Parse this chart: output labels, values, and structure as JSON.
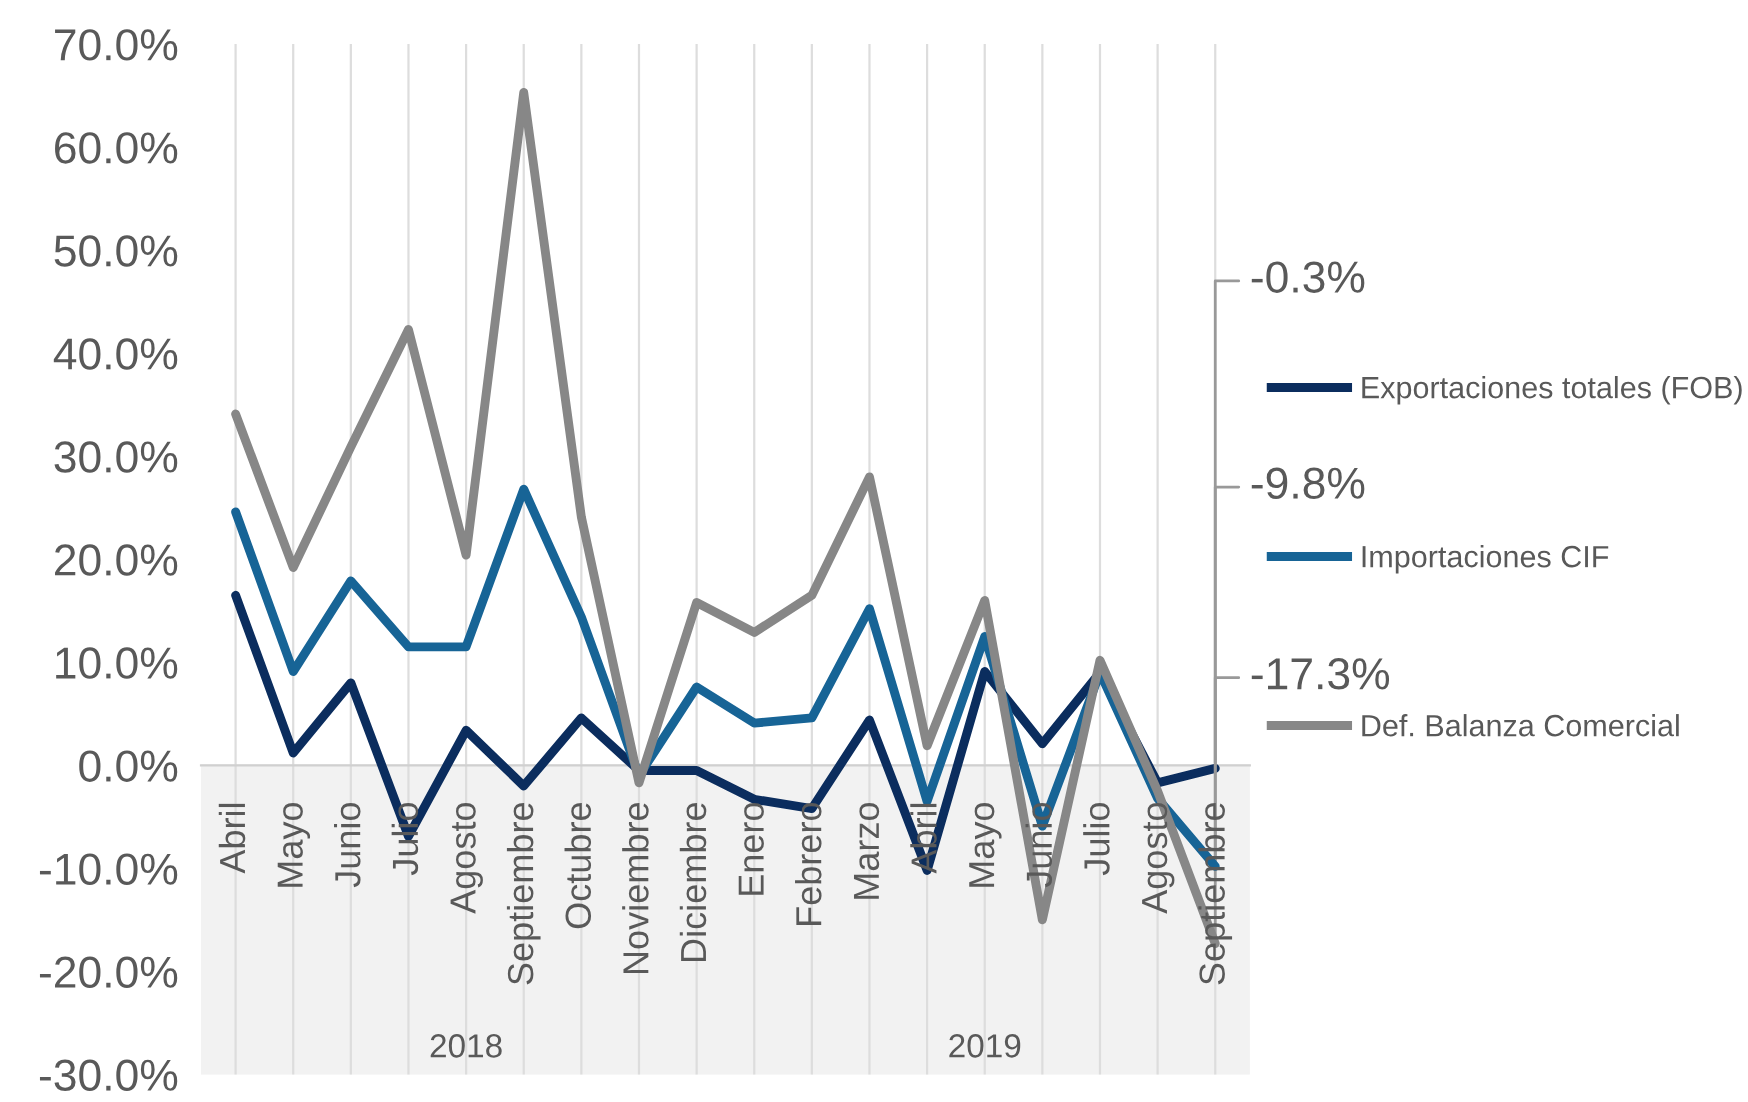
{
  "chart_data": {
    "type": "line",
    "categories": [
      "Abril",
      "Mayo",
      "Junio",
      "Julio",
      "Agosto",
      "Septiembre",
      "Octubre",
      "Noviembre",
      "Diciembre",
      "Enero",
      "Febrero",
      "Marzo",
      "Abril",
      "Mayo",
      "Junio",
      "Julio",
      "Agosto",
      "Septiembre"
    ],
    "series": [
      {
        "name": "Exportaciones totales (FOB)",
        "color": "#0b2d5e",
        "values": [
          16.5,
          1.2,
          8.0,
          -6.9,
          3.4,
          -2.0,
          4.6,
          -0.5,
          -0.5,
          -3.3,
          -4.2,
          4.4,
          -10.2,
          9.1,
          2.1,
          9.0,
          -1.7,
          -0.3
        ],
        "value_labels": [
          null,
          null,
          null,
          null,
          null,
          null,
          null,
          null,
          null,
          null,
          null,
          null,
          null,
          null,
          null,
          null,
          null,
          "-0.3%"
        ]
      },
      {
        "name": "Importaciones CIF",
        "color": "#176496",
        "values": [
          24.6,
          9.1,
          17.9,
          11.5,
          11.5,
          26.8,
          14.4,
          -1.0,
          7.6,
          4.1,
          4.6,
          15.2,
          -3.5,
          12.5,
          -5.9,
          9.0,
          -3.2,
          -9.8
        ],
        "value_labels": [
          null,
          null,
          null,
          null,
          null,
          null,
          null,
          null,
          null,
          null,
          null,
          null,
          null,
          null,
          null,
          null,
          null,
          "-9.8%"
        ]
      },
      {
        "name": "Def. Balanza Comercial",
        "color": "#878787",
        "values": [
          34.1,
          19.2,
          30.9,
          42.3,
          20.4,
          65.3,
          24.1,
          -1.7,
          15.8,
          12.9,
          16.5,
          28.0,
          1.9,
          16.0,
          -15.0,
          10.2,
          -2.5,
          -17.3
        ],
        "value_labels": [
          null,
          null,
          null,
          null,
          null,
          null,
          null,
          null,
          null,
          null,
          null,
          null,
          null,
          null,
          null,
          null,
          null,
          "-17.3%"
        ]
      }
    ],
    "ylim": [
      -30,
      70
    ],
    "yticks": [
      {
        "value": -30,
        "label": "-30.0%"
      },
      {
        "value": -20,
        "label": "-20.0%"
      },
      {
        "value": -10,
        "label": "-10.0%"
      },
      {
        "value": 0,
        "label": "0.0%"
      },
      {
        "value": 10,
        "label": "10.0%"
      },
      {
        "value": 20,
        "label": "20.0%"
      },
      {
        "value": 30,
        "label": "30.0%"
      },
      {
        "value": 40,
        "label": "40.0%"
      },
      {
        "value": 50,
        "label": "50.0%"
      },
      {
        "value": 60,
        "label": "60.0%"
      },
      {
        "value": 70,
        "label": "70.0%"
      }
    ],
    "grid": "x",
    "legend": "right",
    "marker": "none",
    "line_style": "solid",
    "annotations": [
      "2018",
      "2019"
    ]
  }
}
